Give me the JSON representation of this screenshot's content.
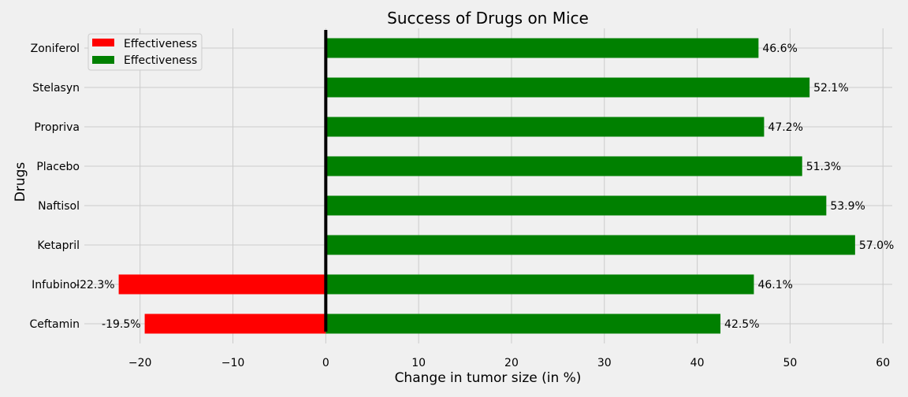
{
  "chart_data": {
    "type": "bar",
    "orientation": "horizontal",
    "title": "Success of Drugs on Mice",
    "xlabel": "Change in tumor size (in %)",
    "ylabel": "Drugs",
    "categories": [
      "Ceftamin",
      "Infubinol",
      "Ketapril",
      "Naftisol",
      "Placebo",
      "Propriva",
      "Stelasyn",
      "Zoniferol"
    ],
    "series": [
      {
        "name": "Effectiveness",
        "color": "#ff0000",
        "values": [
          -19.5,
          -22.3,
          null,
          null,
          null,
          null,
          null,
          null
        ],
        "labels": [
          "-19.5%",
          "-22.3%",
          "",
          "",
          "",
          "",
          "",
          ""
        ]
      },
      {
        "name": "Effectiveness",
        "color": "#008000",
        "values": [
          42.5,
          46.1,
          57.0,
          53.9,
          51.3,
          47.2,
          52.1,
          46.6
        ],
        "labels": [
          "42.5%",
          "46.1%",
          "57.0%",
          "53.9%",
          "51.3%",
          "47.2%",
          "52.1%",
          "46.6%"
        ]
      }
    ],
    "xlim": [
      -26,
      61
    ],
    "xticks": [
      -20,
      -10,
      0,
      10,
      20,
      30,
      40,
      50,
      60
    ],
    "xtick_labels": [
      "−20",
      "−10",
      "0",
      "10",
      "20",
      "30",
      "40",
      "50",
      "60"
    ],
    "zero_line": true,
    "grid": true,
    "legend": {
      "position": "top-left",
      "entries": [
        "Effectiveness",
        "Effectiveness"
      ]
    },
    "style": {
      "background": "#f0f0f0",
      "grid_color": "#cbcbcb"
    }
  }
}
